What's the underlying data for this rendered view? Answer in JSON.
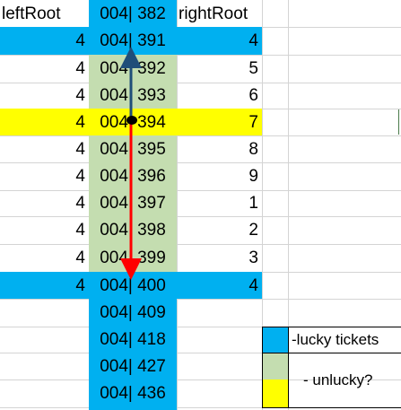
{
  "colors": {
    "blue": "#00B0F0",
    "green": "#C4DDB0",
    "yellow": "#FFFF00",
    "grid": "#D4D4D4",
    "arrow_up": "#1F4E79",
    "arrow_down": "#FF0000"
  },
  "header": {
    "left": "leftRoot",
    "mid": "004| 382",
    "right": "rightRoot"
  },
  "rows": [
    {
      "left": "4",
      "mid": "004| 391",
      "right": "4",
      "fill": "blue"
    },
    {
      "left": "4",
      "mid": "004| 392",
      "right": "5",
      "fill": "green"
    },
    {
      "left": "4",
      "mid": "004| 393",
      "right": "6",
      "fill": "green"
    },
    {
      "left": "4",
      "mid": "004| 394",
      "right": "7",
      "fill": "yellow"
    },
    {
      "left": "4",
      "mid": "004| 395",
      "right": "8",
      "fill": "green"
    },
    {
      "left": "4",
      "mid": "004| 396",
      "right": "9",
      "fill": "green"
    },
    {
      "left": "4",
      "mid": "004| 397",
      "right": "1",
      "fill": "green"
    },
    {
      "left": "4",
      "mid": "004| 398",
      "right": "2",
      "fill": "green"
    },
    {
      "left": "4",
      "mid": "004| 399",
      "right": "3",
      "fill": "green"
    },
    {
      "left": "4",
      "mid": "004| 400",
      "right": "4",
      "fill": "blue"
    }
  ],
  "extra": [
    "004| 409",
    "004| 418",
    "004| 427",
    "004| 436"
  ],
  "legend": {
    "lucky": "-lucky tickets",
    "unlucky": "- unlucky?"
  }
}
